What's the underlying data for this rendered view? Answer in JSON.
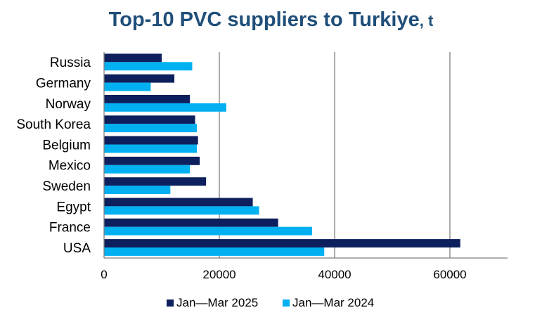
{
  "chart_data": {
    "type": "bar",
    "orientation": "horizontal",
    "title": "Top-10 PVC suppliers to Turkiye",
    "title_unit": ", t",
    "categories": [
      "Russia",
      "Germany",
      "Norway",
      "South Korea",
      "Belgium",
      "Mexico",
      "Sweden",
      "Egypt",
      "France",
      "USA"
    ],
    "series": [
      {
        "name": "Jan—Mar 2025",
        "color": "#0d1f5c",
        "values": [
          10000,
          12200,
          14900,
          15800,
          16300,
          16600,
          17700,
          25800,
          30200,
          61800
        ]
      },
      {
        "name": "Jan—Mar 2024",
        "color": "#00b0f0",
        "values": [
          15300,
          8100,
          21200,
          16100,
          16100,
          14900,
          11500,
          26900,
          36100,
          38200
        ]
      }
    ],
    "x_ticks": [
      "0",
      "20000",
      "40000",
      "60000"
    ],
    "xlim": [
      0,
      70000
    ],
    "grid": "vertical",
    "legend_position": "bottom"
  }
}
